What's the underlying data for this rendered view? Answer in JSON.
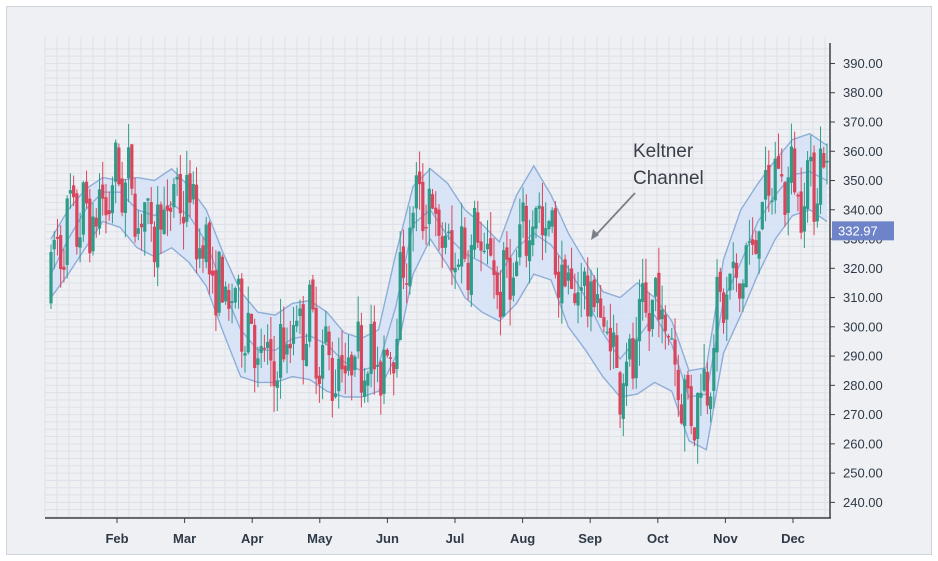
{
  "chart_data": {
    "type": "candlestick",
    "price_tag": "332.97",
    "annotation": "Keltner\nChannel",
    "colors": {
      "up": "#2f9c8a",
      "down": "#d9455b",
      "band_fill": "#d6e2f7",
      "band_line": "#8eaed8",
      "price_tag_bg": "#6f84c8"
    },
    "y_axis": {
      "ylim": [
        235,
        397
      ],
      "ticks": [
        "240.00",
        "250.00",
        "260.00",
        "270.00",
        "280.00",
        "290.00",
        "300.00",
        "310.00",
        "320.00",
        "330.00",
        "340.00",
        "350.00",
        "360.00",
        "370.00",
        "380.00",
        "390.00"
      ]
    },
    "x_axis": {
      "months": [
        "Feb",
        "Mar",
        "Apr",
        "May",
        "Jun",
        "Jul",
        "Aug",
        "Sep",
        "Oct",
        "Nov",
        "Dec"
      ]
    },
    "middle_line": [
      [
        0,
        318
      ],
      [
        8,
        330
      ],
      [
        16,
        340
      ],
      [
        24,
        346
      ],
      [
        32,
        346
      ],
      [
        40,
        340
      ],
      [
        48,
        338
      ],
      [
        56,
        342
      ],
      [
        64,
        338
      ],
      [
        72,
        329
      ],
      [
        80,
        313
      ],
      [
        88,
        299
      ],
      [
        96,
        292
      ],
      [
        104,
        292
      ],
      [
        112,
        296
      ],
      [
        120,
        297
      ],
      [
        128,
        294
      ],
      [
        136,
        288
      ],
      [
        144,
        285
      ],
      [
        152,
        287
      ],
      [
        160,
        307
      ],
      [
        168,
        335
      ],
      [
        176,
        340
      ],
      [
        184,
        331
      ],
      [
        192,
        325
      ],
      [
        200,
        322
      ],
      [
        208,
        318
      ],
      [
        216,
        327
      ],
      [
        224,
        332
      ],
      [
        232,
        328
      ],
      [
        240,
        320
      ],
      [
        248,
        310
      ],
      [
        256,
        298
      ],
      [
        264,
        289
      ],
      [
        272,
        296
      ],
      [
        280,
        304
      ],
      [
        288,
        294
      ],
      [
        296,
        276
      ],
      [
        304,
        277
      ],
      [
        312,
        309
      ],
      [
        320,
        322
      ],
      [
        328,
        336
      ],
      [
        336,
        345
      ],
      [
        344,
        352
      ],
      [
        352,
        353
      ],
      [
        360,
        350
      ]
    ],
    "band_upper": [
      [
        0,
        330
      ],
      [
        8,
        340
      ],
      [
        16,
        347
      ],
      [
        24,
        351
      ],
      [
        32,
        350
      ],
      [
        40,
        351
      ],
      [
        48,
        350
      ],
      [
        56,
        354
      ],
      [
        64,
        348
      ],
      [
        72,
        340
      ],
      [
        80,
        325
      ],
      [
        88,
        312
      ],
      [
        96,
        305
      ],
      [
        104,
        304
      ],
      [
        112,
        308
      ],
      [
        120,
        309
      ],
      [
        128,
        305
      ],
      [
        136,
        298
      ],
      [
        144,
        296
      ],
      [
        152,
        299
      ],
      [
        160,
        325
      ],
      [
        168,
        348
      ],
      [
        176,
        354
      ],
      [
        184,
        349
      ],
      [
        192,
        340
      ],
      [
        200,
        335
      ],
      [
        208,
        329
      ],
      [
        216,
        345
      ],
      [
        224,
        355
      ],
      [
        232,
        345
      ],
      [
        240,
        332
      ],
      [
        248,
        322
      ],
      [
        256,
        312
      ],
      [
        264,
        310
      ],
      [
        272,
        315
      ],
      [
        280,
        310
      ],
      [
        288,
        302
      ],
      [
        296,
        285
      ],
      [
        304,
        286
      ],
      [
        312,
        323
      ],
      [
        320,
        340
      ],
      [
        328,
        349
      ],
      [
        336,
        357
      ],
      [
        344,
        364
      ],
      [
        352,
        366
      ],
      [
        360,
        362
      ]
    ],
    "band_lower": [
      [
        0,
        310
      ],
      [
        8,
        318
      ],
      [
        16,
        327
      ],
      [
        24,
        336
      ],
      [
        32,
        334
      ],
      [
        40,
        327
      ],
      [
        48,
        324
      ],
      [
        56,
        327
      ],
      [
        64,
        322
      ],
      [
        72,
        314
      ],
      [
        80,
        298
      ],
      [
        88,
        283
      ],
      [
        96,
        281
      ],
      [
        104,
        281
      ],
      [
        112,
        283
      ],
      [
        120,
        282
      ],
      [
        128,
        278
      ],
      [
        136,
        276
      ],
      [
        144,
        276
      ],
      [
        152,
        278
      ],
      [
        160,
        290
      ],
      [
        168,
        318
      ],
      [
        176,
        330
      ],
      [
        184,
        321
      ],
      [
        192,
        310
      ],
      [
        200,
        305
      ],
      [
        208,
        302
      ],
      [
        216,
        308
      ],
      [
        224,
        318
      ],
      [
        232,
        316
      ],
      [
        240,
        300
      ],
      [
        248,
        292
      ],
      [
        256,
        283
      ],
      [
        264,
        276
      ],
      [
        272,
        277
      ],
      [
        280,
        281
      ],
      [
        288,
        278
      ],
      [
        296,
        261
      ],
      [
        304,
        258
      ],
      [
        312,
        291
      ],
      [
        320,
        304
      ],
      [
        328,
        318
      ],
      [
        336,
        330
      ],
      [
        344,
        338
      ],
      [
        352,
        340
      ],
      [
        360,
        336
      ]
    ]
  }
}
